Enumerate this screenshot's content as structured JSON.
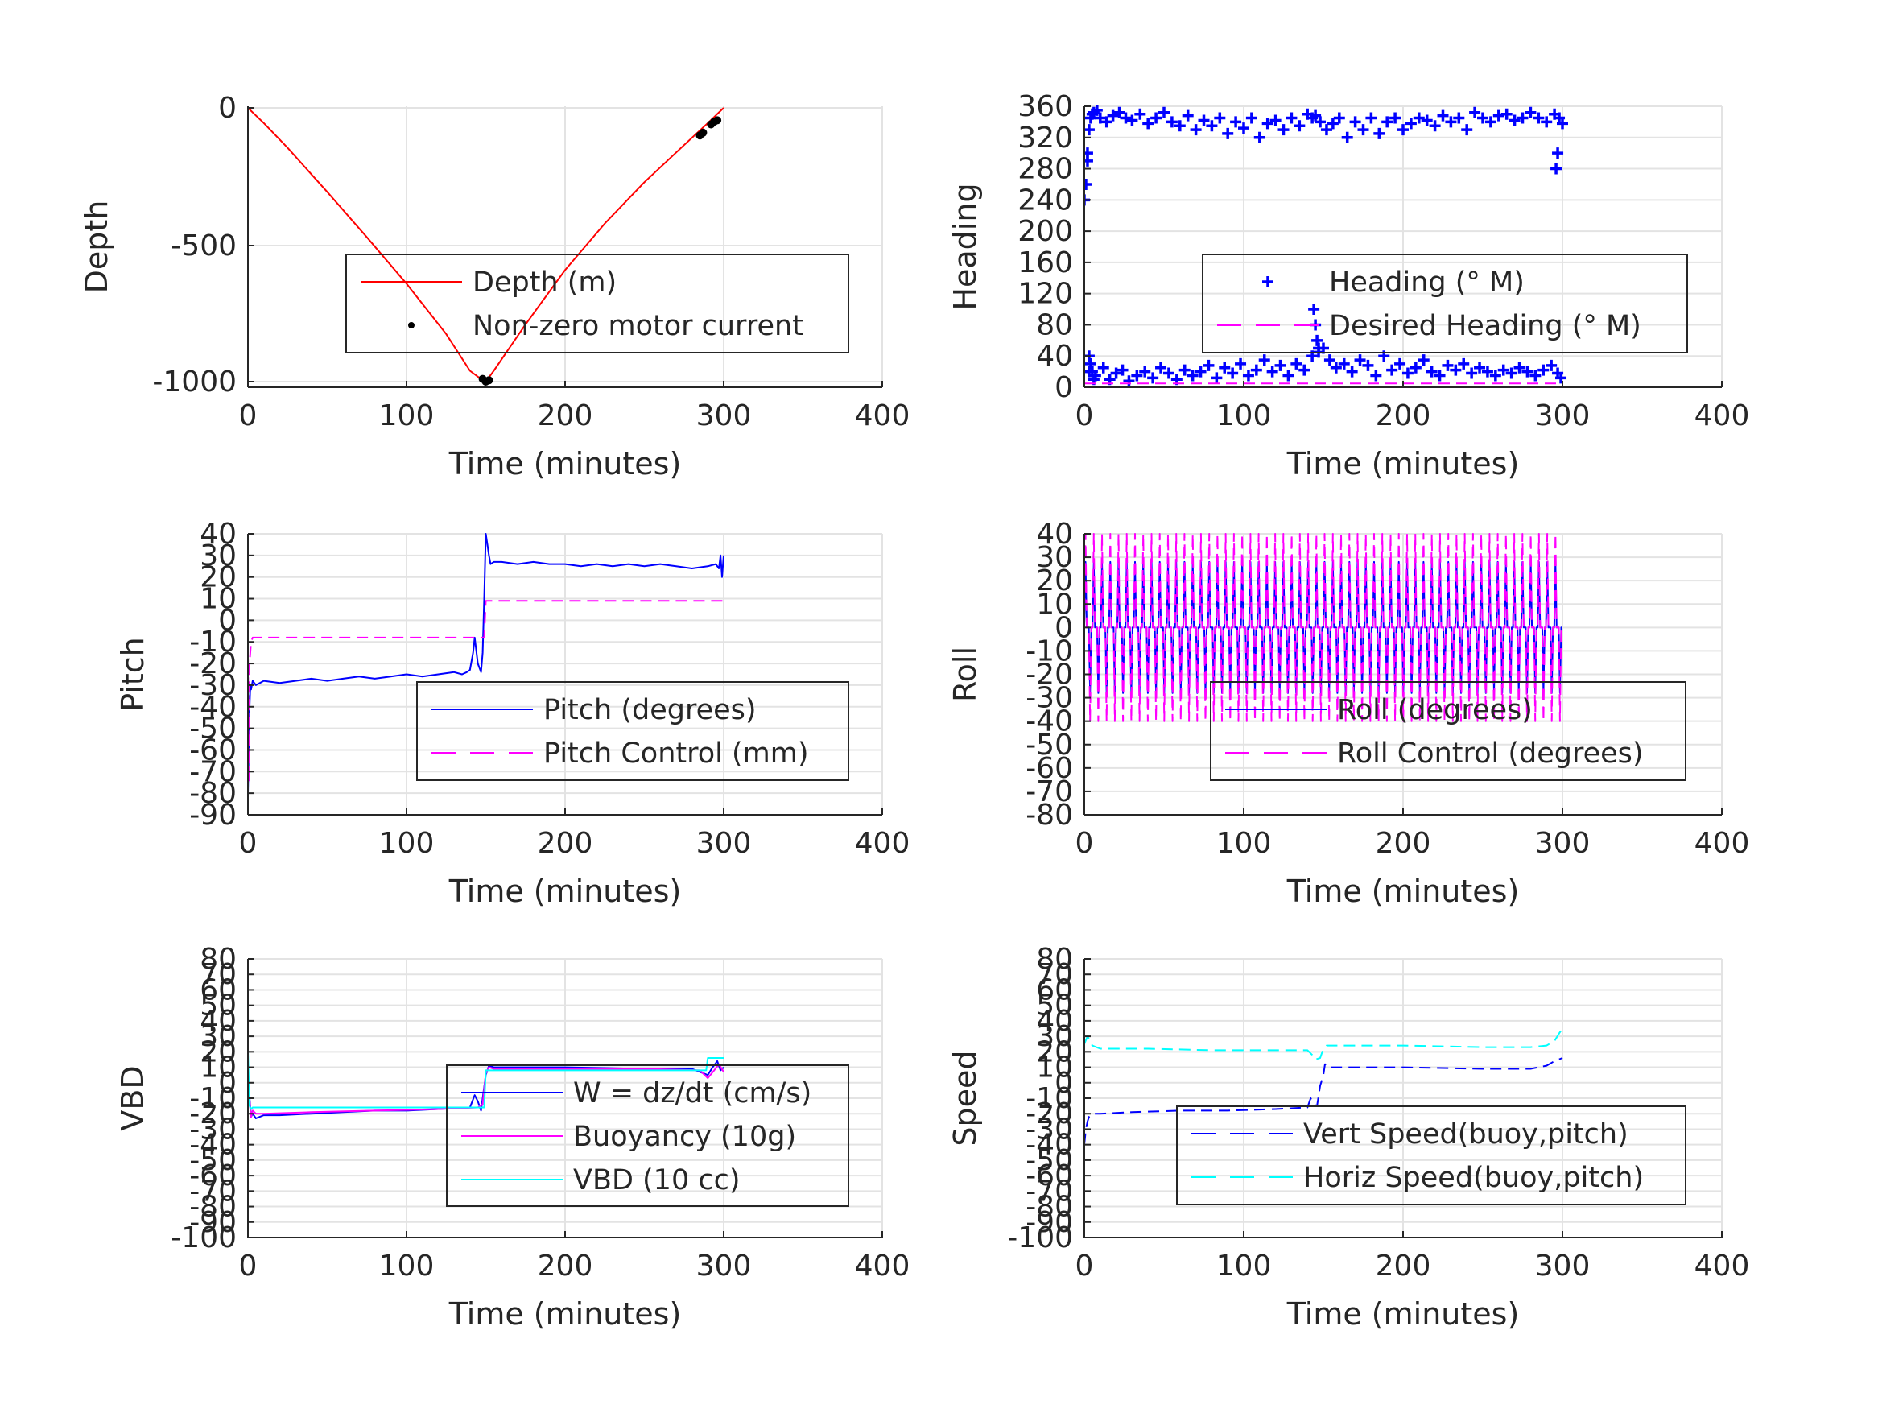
{
  "chart_data": [
    {
      "type": "line",
      "ylabel": "Depth",
      "xlabel": "Time (minutes)",
      "xlim": [
        0,
        400
      ],
      "ylim": [
        -1000,
        0
      ],
      "xticks": [
        0,
        100,
        200,
        300,
        400
      ],
      "yticks": [
        -1000,
        -500,
        0
      ],
      "ytick_labels": [
        "-1000",
        "-500",
        "0"
      ],
      "grid": true,
      "legend_placement": "center-right",
      "series": [
        {
          "name": "Depth (m)",
          "style": "line",
          "color": "#ff0000",
          "x": [
            0,
            10,
            25,
            50,
            75,
            100,
            125,
            140,
            148,
            150,
            155,
            175,
            200,
            225,
            250,
            275,
            290,
            300
          ],
          "y": [
            0,
            -55,
            -145,
            -305,
            -470,
            -640,
            -825,
            -960,
            -995,
            -1000,
            -960,
            -790,
            -590,
            -420,
            -270,
            -135,
            -55,
            0
          ]
        },
        {
          "name": "Non-zero motor current",
          "style": "markers",
          "color": "#000000",
          "x": [
            148,
            150,
            152,
            285,
            287,
            292,
            294,
            296
          ],
          "y": [
            -990,
            -1000,
            -995,
            -100,
            -90,
            -60,
            -50,
            -45
          ]
        }
      ]
    },
    {
      "type": "scatter",
      "ylabel": "Heading",
      "xlabel": "Time (minutes)",
      "xlim": [
        0,
        400
      ],
      "ylim": [
        0,
        360
      ],
      "xticks": [
        0,
        100,
        200,
        300,
        400
      ],
      "yticks": [
        0,
        40,
        80,
        120,
        160,
        200,
        240,
        280,
        320,
        360
      ],
      "ytick_labels": [
        "0",
        "40",
        "80",
        "120",
        "160",
        "200",
        "240",
        "280",
        "320",
        "360"
      ],
      "grid": true,
      "legend_placement": "center-right",
      "series": [
        {
          "name": "Heading (° M)",
          "style": "plus",
          "color": "#0000ff",
          "x": [
            0,
            1,
            2,
            3,
            4,
            5,
            6,
            8,
            10,
            14,
            18,
            22,
            26,
            30,
            35,
            40,
            45,
            50,
            55,
            60,
            65,
            70,
            75,
            80,
            85,
            90,
            95,
            100,
            105,
            110,
            115,
            120,
            125,
            130,
            135,
            140,
            143,
            145,
            148,
            152,
            156,
            160,
            165,
            170,
            175,
            180,
            185,
            190,
            195,
            200,
            205,
            210,
            215,
            220,
            225,
            230,
            235,
            240,
            245,
            250,
            255,
            260,
            265,
            270,
            275,
            280,
            285,
            290,
            295,
            298,
            300,
            3,
            7,
            12,
            16,
            20,
            24,
            28,
            33,
            38,
            43,
            48,
            53,
            58,
            63,
            68,
            73,
            78,
            83,
            88,
            93,
            98,
            103,
            108,
            113,
            118,
            123,
            128,
            133,
            138,
            143,
            147,
            150,
            154,
            158,
            163,
            168,
            173,
            178,
            183,
            188,
            193,
            198,
            203,
            208,
            213,
            218,
            223,
            228,
            233,
            238,
            243,
            248,
            253,
            258,
            263,
            268,
            273,
            278,
            283,
            288,
            293,
            297,
            299,
            3,
            4,
            5,
            6,
            2,
            144,
            145,
            146,
            147,
            296,
            297
          ],
          "y": [
            240,
            260,
            300,
            330,
            345,
            350,
            352,
            355,
            345,
            340,
            348,
            352,
            345,
            342,
            350,
            338,
            345,
            352,
            340,
            335,
            348,
            330,
            342,
            335,
            345,
            325,
            340,
            332,
            345,
            320,
            338,
            342,
            330,
            345,
            335,
            350,
            345,
            348,
            340,
            330,
            338,
            345,
            320,
            340,
            330,
            345,
            325,
            340,
            345,
            330,
            338,
            345,
            342,
            335,
            348,
            340,
            345,
            330,
            352,
            345,
            340,
            348,
            350,
            342,
            345,
            352,
            345,
            340,
            350,
            345,
            338,
            20,
            15,
            25,
            10,
            18,
            22,
            8,
            15,
            20,
            12,
            25,
            18,
            10,
            22,
            15,
            20,
            28,
            12,
            25,
            18,
            30,
            15,
            22,
            35,
            20,
            28,
            15,
            30,
            22,
            40,
            45,
            50,
            35,
            25,
            30,
            20,
            35,
            28,
            15,
            40,
            22,
            30,
            18,
            25,
            35,
            20,
            15,
            28,
            22,
            30,
            18,
            25,
            20,
            15,
            22,
            18,
            25,
            20,
            15,
            22,
            28,
            18,
            12,
            40,
            30,
            20,
            10,
            290,
            100,
            80,
            60,
            50,
            280,
            300
          ]
        },
        {
          "name": "Desired Heading (° M)",
          "style": "dashed",
          "color": "#ff00ff",
          "x": [
            0,
            300
          ],
          "y": [
            5,
            5
          ]
        }
      ]
    },
    {
      "type": "line",
      "ylabel": "Pitch",
      "xlabel": "Time (minutes)",
      "xlim": [
        0,
        400
      ],
      "ylim": [
        -90,
        40
      ],
      "xticks": [
        0,
        100,
        200,
        300,
        400
      ],
      "yticks": [
        -90,
        -80,
        -70,
        -60,
        -50,
        -40,
        -30,
        -20,
        -10,
        0,
        10,
        20,
        30,
        40
      ],
      "ytick_labels": [
        "-90",
        "-80",
        "-70",
        "-60",
        "-50",
        "-40",
        "-30",
        "-20",
        "-10",
        "0",
        "10",
        "20",
        "30",
        "40"
      ],
      "grid": true,
      "legend_placement": "lower-right",
      "series": [
        {
          "name": "Pitch (degrees)",
          "style": "line",
          "color": "#0000ff",
          "x": [
            0,
            0.5,
            1,
            1.5,
            2,
            3,
            5,
            10,
            20,
            30,
            40,
            50,
            60,
            70,
            80,
            90,
            100,
            110,
            120,
            130,
            135,
            138,
            140,
            142,
            143,
            145,
            147,
            148,
            149,
            150,
            151,
            152,
            153,
            155,
            160,
            170,
            180,
            190,
            200,
            210,
            220,
            230,
            240,
            250,
            260,
            270,
            280,
            290,
            295,
            297,
            298,
            299,
            300
          ],
          "y": [
            -80,
            -60,
            -40,
            -30,
            -32,
            -28,
            -30,
            -28,
            -29,
            -28,
            -27,
            -28,
            -27,
            -26,
            -27,
            -26,
            -25,
            -26,
            -25,
            -24,
            -25,
            -24,
            -23,
            -15,
            -8,
            -20,
            -24,
            -15,
            10,
            40,
            35,
            30,
            26,
            27,
            27,
            26,
            27,
            26,
            26,
            25,
            26,
            25,
            26,
            25,
            26,
            25,
            24,
            25,
            26,
            24,
            30,
            20,
            30
          ]
        },
        {
          "name": "Pitch Control (mm)",
          "style": "dashed",
          "color": "#ff00ff",
          "x": [
            0,
            0.5,
            1,
            2,
            3,
            148,
            149,
            150,
            151,
            300
          ],
          "y": [
            -10,
            -75,
            -20,
            -10,
            -8,
            -8,
            -8,
            9,
            9,
            9
          ]
        }
      ]
    },
    {
      "type": "line",
      "ylabel": "Roll",
      "xlabel": "Time (minutes)",
      "xlim": [
        0,
        400
      ],
      "ylim": [
        -80,
        40
      ],
      "xticks": [
        0,
        100,
        200,
        300,
        400
      ],
      "yticks": [
        -80,
        -70,
        -60,
        -50,
        -40,
        -30,
        -20,
        -10,
        0,
        10,
        20,
        30,
        40
      ],
      "ytick_labels": [
        "-80",
        "-70",
        "-60",
        "-50",
        "-40",
        "-30",
        "-20",
        "-10",
        "0",
        "10",
        "20",
        "30",
        "40"
      ],
      "grid": true,
      "legend_placement": "lower-right",
      "series": [
        {
          "name": "Roll (degrees)",
          "style": "line",
          "color": "#0000ff",
          "oscillation": {
            "start": 0,
            "end": 300,
            "cycles": 58,
            "high": 28,
            "low": -28,
            "baseline": 0
          }
        },
        {
          "name": "Roll Control (degrees)",
          "style": "dashed",
          "color": "#ff00ff",
          "oscillation": {
            "start": 0,
            "end": 300,
            "cycles": 58,
            "high": 40,
            "low": -40,
            "baseline": 0
          }
        }
      ]
    },
    {
      "type": "line",
      "ylabel": "VBD",
      "xlabel": "Time (minutes)",
      "xlim": [
        0,
        400
      ],
      "ylim": [
        -100,
        80
      ],
      "xticks": [
        0,
        100,
        200,
        300,
        400
      ],
      "yticks": [
        -100,
        -90,
        -80,
        -70,
        -60,
        -50,
        -40,
        -30,
        -20,
        -10,
        0,
        10,
        20,
        30,
        40,
        50,
        60,
        70,
        80
      ],
      "ytick_labels": [
        "-100",
        "-90",
        "-80",
        "-70",
        "-60",
        "-50",
        "-40",
        "-30",
        "-20",
        "-10",
        "0",
        "10",
        "20",
        "30",
        "40",
        "50",
        "60",
        "70",
        "80"
      ],
      "grid": true,
      "legend_placement": "lower-right",
      "series": [
        {
          "name": "W = dz/dt (cm/s)",
          "style": "line",
          "color": "#0000ff",
          "x": [
            0,
            1,
            2,
            3,
            5,
            10,
            20,
            40,
            60,
            80,
            100,
            120,
            140,
            143,
            145,
            147,
            148,
            150,
            152,
            155,
            160,
            200,
            250,
            280,
            290,
            293,
            296,
            298,
            300
          ],
          "y": [
            0,
            -10,
            -22,
            -20,
            -23,
            -21,
            -21,
            -20,
            -19,
            -18,
            -18,
            -17,
            -16,
            -8,
            -12,
            -18,
            -10,
            5,
            11,
            10,
            10,
            10,
            9,
            9,
            5,
            10,
            14,
            8,
            10
          ]
        },
        {
          "name": "Buoyancy (10g)",
          "style": "line",
          "color": "#ff00ff",
          "x": [
            0,
            1,
            2,
            3,
            5,
            10,
            40,
            80,
            120,
            145,
            148,
            150,
            152,
            155,
            200,
            250,
            285,
            290,
            294,
            297,
            300
          ],
          "y": [
            0,
            -12,
            -22,
            -18,
            -20,
            -20,
            -19,
            -18,
            -17,
            -16,
            -14,
            6,
            10,
            9,
            9,
            9,
            8,
            3,
            8,
            12,
            7
          ]
        },
        {
          "name": "VBD (10 cc)",
          "style": "line",
          "color": "#00ffff",
          "x": [
            0,
            1,
            2,
            3,
            148,
            149,
            150,
            151,
            288,
            289,
            290,
            300
          ],
          "y": [
            20,
            -15,
            -17,
            -16,
            -16,
            -16,
            8,
            8,
            8,
            8,
            16,
            16
          ]
        }
      ]
    },
    {
      "type": "line",
      "ylabel": "Speed",
      "xlabel": "Time (minutes)",
      "xlim": [
        0,
        400
      ],
      "ylim": [
        -100,
        80
      ],
      "xticks": [
        0,
        100,
        200,
        300,
        400
      ],
      "yticks": [
        -100,
        -90,
        -80,
        -70,
        -60,
        -50,
        -40,
        -30,
        -20,
        -10,
        0,
        10,
        20,
        30,
        40,
        50,
        60,
        70,
        80
      ],
      "ytick_labels": [
        "-100",
        "-90",
        "-80",
        "-70",
        "-60",
        "-50",
        "-40",
        "-30",
        "-20",
        "-10",
        "0",
        "10",
        "20",
        "30",
        "40",
        "50",
        "60",
        "70",
        "80"
      ],
      "grid": true,
      "legend_placement": "lower-right",
      "series": [
        {
          "name": "Vert Speed(buoy,pitch)",
          "style": "dashed",
          "color": "#0000ff",
          "x": [
            0,
            1,
            2,
            3,
            5,
            10,
            30,
            60,
            90,
            120,
            140,
            142,
            144,
            146,
            148,
            150,
            151,
            152,
            155,
            160,
            200,
            250,
            280,
            290,
            295,
            300
          ],
          "y": [
            -40,
            -30,
            -25,
            -22,
            -20,
            -20,
            -19,
            -18,
            -18,
            -17,
            -16,
            -10,
            -14,
            -15,
            -2,
            5,
            12,
            10,
            10,
            10,
            10,
            9,
            9,
            11,
            14,
            16
          ]
        },
        {
          "name": "Horiz Speed(buoy,pitch)",
          "style": "dashed",
          "color": "#00ffff",
          "x": [
            0,
            2,
            5,
            10,
            40,
            80,
            120,
            140,
            143,
            145,
            148,
            150,
            152,
            155,
            200,
            250,
            280,
            290,
            295,
            298,
            300
          ],
          "y": [
            25,
            30,
            24,
            22,
            22,
            21,
            21,
            21,
            18,
            15,
            16,
            22,
            24,
            24,
            24,
            23,
            23,
            24,
            27,
            32,
            35
          ]
        }
      ]
    }
  ]
}
